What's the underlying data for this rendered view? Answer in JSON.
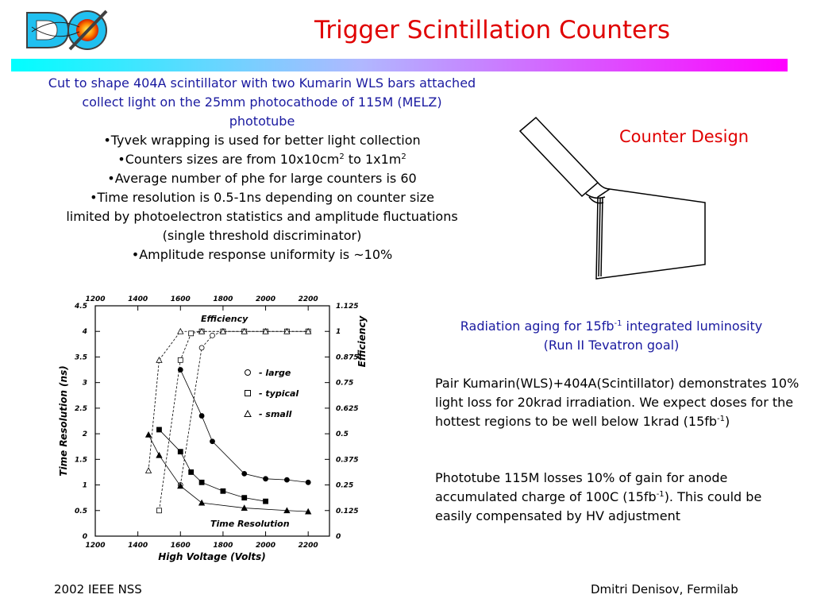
{
  "header": {
    "logo_text": "DØ",
    "title": "Trigger Scintillation Counters",
    "colors": {
      "title": "#e00000",
      "bar_start": "#00ffff",
      "bar_end": "#ff00ff",
      "blue_text": "#1a1aa0"
    }
  },
  "intro": {
    "line1": "Cut to shape 404A scintillator with two Kumarin WLS bars attached",
    "line2": "collect light on the 25mm photocathode of 115M (MELZ)",
    "line3": "phototube",
    "bullet1": "•Tyvek wrapping is used for better light collection",
    "bullet2_pre": "•Counters sizes are from 10x10cm",
    "bullet2_sup1": "2",
    "bullet2_mid": " to 1x1m",
    "bullet2_sup2": "2",
    "bullet3": "•Average number of phe for large counters is 60",
    "bullet4a": "•Time resolution is 0.5-1ns depending on counter size",
    "bullet4b": "limited by photoelectron statistics and amplitude fluctuations",
    "bullet4c": "(single threshold discriminator)",
    "bullet5": "•Amplitude response uniformity is ~10%"
  },
  "counter_design": {
    "label": "Counter Design"
  },
  "radiation": {
    "pre": "Radiation aging for 15fb",
    "sup": "-1",
    "post": " integrated luminosity",
    "line2": "(Run II Tevatron goal)"
  },
  "para1": {
    "text": "Pair Kumarin(WLS)+404A(Scintillator) demonstrates 10% light loss for 20krad irradiation. We expect doses for the hottest regions to be well below 1krad (15fb",
    "sup": "-1",
    "end": ")"
  },
  "para2": {
    "text": "Phototube 115M losses 10% of gain for anode accumulated charge of 100C (15fb",
    "sup": "-1",
    "end": "). This could be easily compensated by HV adjustment"
  },
  "footer": {
    "left": "2002 IEEE NSS",
    "right": "Dmitri Denisov, Fermilab"
  },
  "chart_data": {
    "type": "line",
    "xlabel": "High Voltage  (Volts)",
    "ylabel": "Time Resolution  (ns)",
    "y2label": "Efficiency",
    "xlim": [
      1200,
      2300
    ],
    "ylim": [
      0,
      4.5
    ],
    "y2lim": [
      0,
      1.125
    ],
    "xticks": [
      "1200",
      "1400",
      "1600",
      "1800",
      "2000",
      "2200"
    ],
    "yticks": [
      "0",
      "0.5",
      "1",
      "1.5",
      "2",
      "2.5",
      "3",
      "3.5",
      "4",
      "4.5"
    ],
    "y2ticks": [
      "0",
      "0.125",
      "0.25",
      "0.375",
      "0.5",
      "0.625",
      "0.75",
      "0.875",
      "1",
      "1.125"
    ],
    "efficiency_label": "Efficiency",
    "resolution_label": "Time Resolution",
    "legend": [
      {
        "marker": "circle",
        "label": "- large"
      },
      {
        "marker": "square",
        "label": "- typical"
      },
      {
        "marker": "triangle",
        "label": "- small"
      }
    ],
    "resolution_series": [
      {
        "name": "large",
        "marker": "circle",
        "x": [
          1600,
          1700,
          1750,
          1900,
          2000,
          2100,
          2200
        ],
        "y": [
          3.25,
          2.35,
          1.85,
          1.22,
          1.12,
          1.1,
          1.05
        ]
      },
      {
        "name": "typical",
        "marker": "square",
        "x": [
          1500,
          1600,
          1650,
          1700,
          1800,
          1900,
          2000
        ],
        "y": [
          2.08,
          1.65,
          1.25,
          1.05,
          0.88,
          0.75,
          0.68
        ]
      },
      {
        "name": "small",
        "marker": "triangle",
        "x": [
          1450,
          1500,
          1600,
          1700,
          1900,
          2100,
          2200
        ],
        "y": [
          1.98,
          1.58,
          0.98,
          0.65,
          0.55,
          0.5,
          0.48
        ]
      }
    ],
    "efficiency_series": [
      {
        "name": "large",
        "marker": "circle",
        "x": [
          1600,
          1700,
          1750,
          1800,
          1900,
          2000,
          2100,
          2200
        ],
        "y": [
          0.25,
          0.92,
          0.98,
          1.0,
          1.0,
          1.0,
          1.0,
          1.0
        ]
      },
      {
        "name": "typical",
        "marker": "square",
        "x": [
          1500,
          1600,
          1650,
          1700,
          1800,
          1900,
          2000,
          2100,
          2200
        ],
        "y": [
          0.125,
          0.86,
          0.99,
          1.0,
          1.0,
          1.0,
          1.0,
          1.0,
          1.0
        ]
      },
      {
        "name": "small",
        "marker": "triangle",
        "x": [
          1450,
          1500,
          1600,
          1700,
          1800,
          1900,
          2000,
          2100,
          2200
        ],
        "y": [
          0.32,
          0.86,
          1.0,
          1.0,
          1.0,
          1.0,
          1.0,
          1.0,
          1.0
        ]
      }
    ]
  }
}
